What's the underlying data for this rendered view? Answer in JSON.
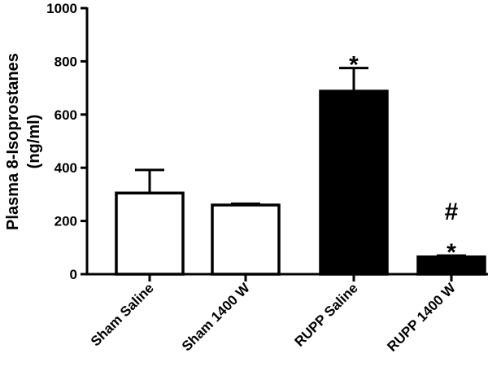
{
  "chart_data": {
    "type": "bar",
    "title": "",
    "ylabel_line1": "Plasma 8-Isoprostanes",
    "ylabel_line2": "(ng/ml)",
    "xlabel": "",
    "ylim": [
      0,
      1000
    ],
    "yticks": [
      0,
      200,
      400,
      600,
      800,
      1000
    ],
    "ytick_labels": [
      "0",
      "200",
      "400",
      "600",
      "800",
      "1000"
    ],
    "categories": [
      "Sham Saline",
      "Sham 1400 W",
      "RUPP Saline",
      "RUPP 1400 W"
    ],
    "values": [
      305,
      260,
      688,
      65
    ],
    "errors": [
      87,
      5,
      87,
      5
    ],
    "fill_colors": [
      "#ffffff",
      "#ffffff",
      "#000000",
      "#000000"
    ],
    "annotations": [
      "",
      "",
      "*",
      "#\n*"
    ],
    "grid": false
  }
}
